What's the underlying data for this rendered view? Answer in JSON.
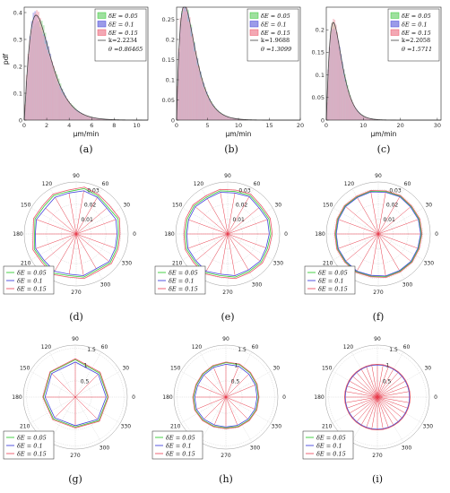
{
  "colors": {
    "s005": "#33cc33",
    "s01": "#4444dd",
    "s015": "#ee5566",
    "bar005": "#9ee09e",
    "bar01": "#9b9be8",
    "bar015": "#f3a8b4",
    "spoke": "#e83b4b",
    "grid": "#c8c8c8",
    "axis": "#222222",
    "fitline": "#444444"
  },
  "chart_data": [
    {
      "type": "bar",
      "panel": "(a)",
      "ylabel": "pdf",
      "xlabel": "μm/min",
      "xlim": [
        0,
        11
      ],
      "ylim": [
        0,
        0.42
      ],
      "xticks": [
        "0",
        "2",
        "4",
        "6",
        "8",
        "10"
      ],
      "xtick_values": [
        0,
        2,
        4,
        6,
        8,
        10
      ],
      "yticks": [
        "0",
        "0.1",
        "0.2",
        "0.3",
        "0.4"
      ],
      "ytick_values": [
        0,
        0.1,
        0.2,
        0.3,
        0.4
      ],
      "legend": [
        "δE = 0.05",
        "δE = 0.1",
        "δE = 0.15"
      ],
      "fit": {
        "k_label": "k=2.2234",
        "theta_label": "θ =0.86465",
        "k": 2.2234,
        "theta": 0.86465
      },
      "bin_width": 0.15,
      "max_x": 10
    },
    {
      "type": "bar",
      "panel": "(b)",
      "ylabel": "",
      "xlabel": "μm/min",
      "xlim": [
        0,
        20
      ],
      "ylim": [
        0,
        0.28
      ],
      "xticks": [
        "0",
        "5",
        "10",
        "15",
        "20"
      ],
      "xtick_values": [
        0,
        5,
        10,
        15,
        20
      ],
      "yticks": [
        "0",
        "0.05",
        "0.1",
        "0.15",
        "0.2",
        "0.25"
      ],
      "ytick_values": [
        0,
        0.05,
        0.1,
        0.15,
        0.2,
        0.25
      ],
      "legend": [
        "δE = 0.05",
        "δE = 0.1",
        "δE = 0.15"
      ],
      "fit": {
        "k_label": "k=1.9688",
        "theta_label": "θ =1.3099",
        "k": 1.9688,
        "theta": 1.3099
      },
      "bin_width": 0.25,
      "max_x": 18
    },
    {
      "type": "bar",
      "panel": "(c)",
      "ylabel": "",
      "xlabel": "μm/min",
      "xlim": [
        0,
        31
      ],
      "ylim": [
        0,
        0.25
      ],
      "xticks": [
        "0",
        "10",
        "20",
        "30"
      ],
      "xtick_values": [
        0,
        10,
        20,
        30
      ],
      "yticks": [
        "0",
        "0.05",
        "0.1",
        "0.15",
        "0.2"
      ],
      "ytick_values": [
        0,
        0.05,
        0.1,
        0.15,
        0.2
      ],
      "legend": [
        "δE = 0.05",
        "δE = 0.1",
        "δE = 0.15"
      ],
      "fit": {
        "k_label": "k=2.2058",
        "theta_label": "θ =1.5711",
        "k": 2.2058,
        "theta": 1.5711
      },
      "bin_width": 0.35,
      "max_x": 22
    },
    {
      "type": "polar",
      "panel": "(d)",
      "rmax": 0.035,
      "rticks": [
        "0.01",
        "0.02",
        "0.03"
      ],
      "rtick_values": [
        0.01,
        0.02,
        0.03
      ],
      "angle_ticks": [
        "0",
        "30",
        "60",
        "90",
        "120",
        "150",
        "180",
        "210",
        "240",
        "270",
        "300",
        "330"
      ],
      "legend": [
        "δE = 0.05",
        "δE = 0.1",
        "δE = 0.15"
      ],
      "spokes": 18,
      "series": [
        {
          "values": [
            0.0285,
            0.03,
            0.028,
            0.0295,
            0.031,
            0.029,
            0.03,
            0.0285,
            0.0295,
            0.028,
            0.03,
            0.029,
            0.0305,
            0.0285,
            0.0295,
            0.028,
            0.03,
            0.029
          ]
        },
        {
          "values": [
            0.0275,
            0.0285,
            0.027,
            0.0285,
            0.0295,
            0.028,
            0.0285,
            0.027,
            0.0285,
            0.0275,
            0.029,
            0.028,
            0.029,
            0.0275,
            0.0285,
            0.027,
            0.029,
            0.028
          ]
        },
        {
          "values": [
            0.0295,
            0.031,
            0.0295,
            0.0305,
            0.032,
            0.03,
            0.031,
            0.0295,
            0.0305,
            0.029,
            0.031,
            0.03,
            0.0315,
            0.0295,
            0.0305,
            0.029,
            0.031,
            0.03
          ]
        }
      ]
    },
    {
      "type": "polar",
      "panel": "(e)",
      "rmax": 0.035,
      "rticks": [
        "0.01",
        "0.02",
        "0.03"
      ],
      "rtick_values": [
        0.01,
        0.02,
        0.03
      ],
      "angle_ticks": [
        "0",
        "30",
        "60",
        "90",
        "120",
        "150",
        "180",
        "210",
        "240",
        "270",
        "300",
        "330"
      ],
      "legend": [
        "δE = 0.05",
        "δE = 0.1",
        "δE = 0.15"
      ],
      "spokes": 18,
      "series": [
        {
          "values": [
            0.029,
            0.0295,
            0.0285,
            0.03,
            0.029,
            0.0295,
            0.0285,
            0.0295,
            0.029,
            0.0285,
            0.0295,
            0.029,
            0.03,
            0.0285,
            0.0295,
            0.029,
            0.0295,
            0.0285
          ]
        },
        {
          "values": [
            0.028,
            0.0285,
            0.0275,
            0.029,
            0.028,
            0.0285,
            0.0275,
            0.0285,
            0.028,
            0.0275,
            0.0285,
            0.028,
            0.029,
            0.0275,
            0.0285,
            0.028,
            0.0285,
            0.0275
          ]
        },
        {
          "values": [
            0.03,
            0.0305,
            0.0295,
            0.031,
            0.03,
            0.0305,
            0.0295,
            0.0305,
            0.03,
            0.0295,
            0.0305,
            0.03,
            0.031,
            0.0295,
            0.0305,
            0.03,
            0.0305,
            0.0295
          ]
        }
      ]
    },
    {
      "type": "polar",
      "panel": "(f)",
      "rmax": 0.035,
      "rticks": [
        "0.01",
        "0.02",
        "0.03"
      ],
      "rtick_values": [
        0.01,
        0.02,
        0.03
      ],
      "angle_ticks": [
        "0",
        "30",
        "60",
        "90",
        "120",
        "150",
        "180",
        "210",
        "240",
        "270",
        "300",
        "330"
      ],
      "legend": [
        "δE = 0.05",
        "δE = 0.1",
        "δE = 0.15"
      ],
      "spokes": 18,
      "series": [
        {
          "values": [
            0.029,
            0.0292,
            0.0288,
            0.0294,
            0.029,
            0.0292,
            0.0288,
            0.0292,
            0.029,
            0.0288,
            0.0292,
            0.029,
            0.0294,
            0.0288,
            0.0292,
            0.029,
            0.0292,
            0.0288
          ]
        },
        {
          "values": [
            0.0285,
            0.0287,
            0.0283,
            0.0289,
            0.0285,
            0.0287,
            0.0283,
            0.0287,
            0.0285,
            0.0283,
            0.0287,
            0.0285,
            0.0289,
            0.0283,
            0.0287,
            0.0285,
            0.0287,
            0.0283
          ]
        },
        {
          "values": [
            0.0295,
            0.0297,
            0.0293,
            0.0299,
            0.0295,
            0.0297,
            0.0293,
            0.0297,
            0.0295,
            0.0293,
            0.0297,
            0.0295,
            0.0299,
            0.0293,
            0.0297,
            0.0295,
            0.0297,
            0.0293
          ]
        }
      ]
    },
    {
      "type": "polar",
      "panel": "(g)",
      "rmax": 1.6,
      "rticks": [
        "0.5",
        "1",
        "1.5"
      ],
      "rtick_values": [
        0.5,
        1,
        1.5
      ],
      "angle_ticks": [
        "0",
        "30",
        "60",
        "90",
        "120",
        "150",
        "180",
        "210",
        "240",
        "270",
        "300",
        "330"
      ],
      "legend": [
        "δE = 0.05",
        "δE = 0.1",
        "δE = 0.15"
      ],
      "spokes": 8,
      "series": [
        {
          "values": [
            1.0,
            1.05,
            1.15,
            1.08,
            0.98,
            0.95,
            0.92,
            1.02
          ]
        },
        {
          "values": [
            0.95,
            1.0,
            1.08,
            1.03,
            0.93,
            0.9,
            0.88,
            0.97
          ]
        },
        {
          "values": [
            1.02,
            1.08,
            1.18,
            1.1,
            1.0,
            0.98,
            0.95,
            1.05
          ]
        }
      ]
    },
    {
      "type": "polar",
      "panel": "(h)",
      "rmax": 1.6,
      "rticks": [
        "0.5",
        "1",
        "1.5"
      ],
      "rtick_values": [
        0.5,
        1,
        1.5
      ],
      "angle_ticks": [
        "0",
        "30",
        "60",
        "90",
        "120",
        "150",
        "180",
        "210",
        "240",
        "270",
        "300",
        "330"
      ],
      "legend": [
        "δE = 0.05",
        "δE = 0.1",
        "δE = 0.15"
      ],
      "spokes": 16,
      "series": [
        {
          "values": [
            1.0,
            1.02,
            1.05,
            1.08,
            1.06,
            1.03,
            1.0,
            0.98,
            1.0,
            1.02,
            1.0,
            0.97,
            0.95,
            0.98,
            1.0,
            1.01
          ]
        },
        {
          "values": [
            0.96,
            0.98,
            1.0,
            1.03,
            1.01,
            0.99,
            0.96,
            0.94,
            0.96,
            0.98,
            0.96,
            0.93,
            0.92,
            0.94,
            0.96,
            0.97
          ]
        },
        {
          "values": [
            1.02,
            1.04,
            1.07,
            1.1,
            1.08,
            1.05,
            1.02,
            1.0,
            1.02,
            1.04,
            1.02,
            0.99,
            0.97,
            1.0,
            1.02,
            1.03
          ]
        }
      ]
    },
    {
      "type": "polar",
      "panel": "(i)",
      "rmax": 1.6,
      "rticks": [
        "0.5",
        "1",
        "1.5"
      ],
      "rtick_values": [
        0.5,
        1,
        1.5
      ],
      "angle_ticks": [
        "0",
        "30",
        "60",
        "90",
        "120",
        "150",
        "180",
        "210",
        "240",
        "270",
        "300",
        "330"
      ],
      "legend": [
        "δE = 0.05",
        "δE = 0.1",
        "δE = 0.15"
      ],
      "spokes": 36,
      "series": [
        {
          "values": [
            1.0,
            1.0,
            1.0,
            1.0,
            1.0,
            1.0,
            1.0,
            1.0,
            1.0,
            1.0,
            1.0,
            1.0,
            1.0,
            1.0,
            1.0,
            1.0,
            1.0,
            1.0,
            1.0,
            1.0,
            1.0,
            1.0,
            1.0,
            1.0,
            1.0,
            1.0,
            1.0,
            1.0,
            1.0,
            1.0,
            1.0,
            1.0,
            1.0,
            1.0,
            1.0,
            1.0
          ]
        },
        {
          "values": [
            0.99,
            0.99,
            0.99,
            0.99,
            0.99,
            0.99,
            0.99,
            0.99,
            0.99,
            0.99,
            0.99,
            0.99,
            0.99,
            0.99,
            0.99,
            0.99,
            0.99,
            0.99,
            0.99,
            0.99,
            0.99,
            0.99,
            0.99,
            0.99,
            0.99,
            0.99,
            0.99,
            0.99,
            0.99,
            0.99,
            0.99,
            0.99,
            0.99,
            0.99,
            0.99,
            0.99
          ]
        },
        {
          "values": [
            1.01,
            1.01,
            1.01,
            1.01,
            1.01,
            1.01,
            1.01,
            1.01,
            1.01,
            1.01,
            1.01,
            1.01,
            1.01,
            1.01,
            1.01,
            1.01,
            1.01,
            1.01,
            1.01,
            1.01,
            1.01,
            1.01,
            1.01,
            1.01,
            1.01,
            1.01,
            1.01,
            1.01,
            1.01,
            1.01,
            1.01,
            1.01,
            1.01,
            1.01,
            1.01,
            1.01
          ]
        }
      ]
    }
  ]
}
